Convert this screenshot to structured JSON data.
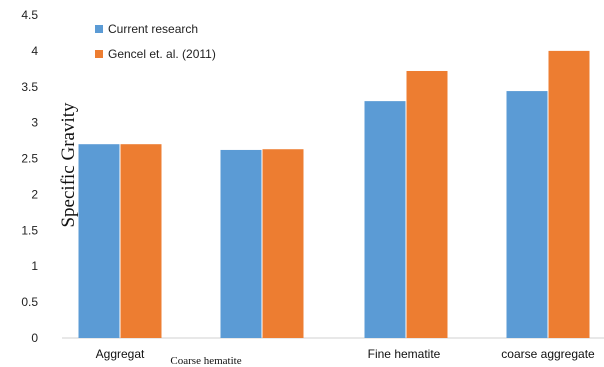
{
  "chart_data": {
    "type": "bar",
    "title": "",
    "xlabel": "",
    "ylabel": "Specific Gravity",
    "categories": [
      "Aggregat",
      "Coarse hematite",
      "Fine hematite",
      "coarse aggregate"
    ],
    "series": [
      {
        "name": "Current research",
        "values": [
          2.7,
          2.62,
          3.3,
          3.44
        ],
        "color": "#5b9bd5"
      },
      {
        "name": "Gencel et. al. (2011)",
        "values": [
          2.7,
          2.63,
          3.72,
          4.0
        ],
        "color": "#ed7d31"
      }
    ],
    "yticks": [
      "0",
      "0.5",
      "1",
      "1.5",
      "2",
      "2.5",
      "3",
      "3.5",
      "4",
      "4.5"
    ],
    "ylim": [
      0,
      4.5
    ],
    "grid": false,
    "legend_position": "top-left"
  }
}
